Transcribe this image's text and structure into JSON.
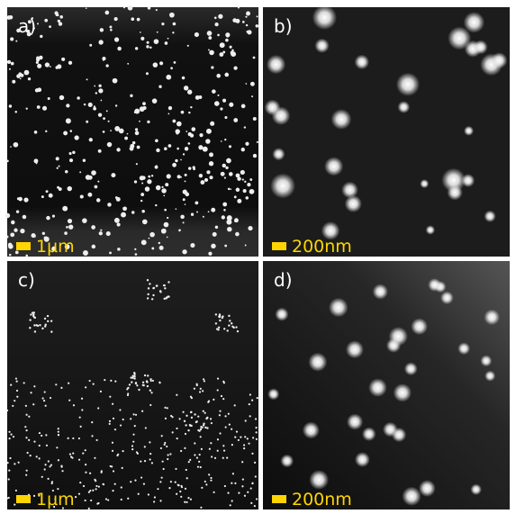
{
  "panels": [
    {
      "label": "a)",
      "scale": "1µm"
    },
    {
      "label": "b)",
      "scale": "200nm"
    },
    {
      "label": "c)",
      "scale": "1µm"
    },
    {
      "label": "d)",
      "scale": "200nm"
    }
  ]
}
